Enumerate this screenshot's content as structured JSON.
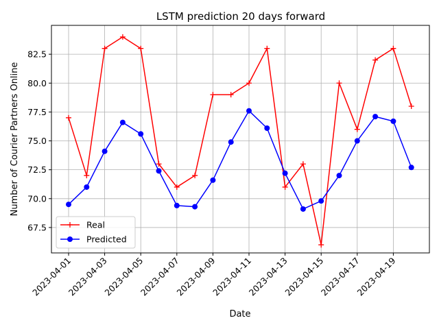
{
  "chart_data": {
    "type": "line",
    "title": "LSTM prediction 20 days forward",
    "xlabel": "Date",
    "ylabel": "Number of Courier Partners Online",
    "x": [
      "2023-04-01",
      "2023-04-02",
      "2023-04-03",
      "2023-04-04",
      "2023-04-05",
      "2023-04-06",
      "2023-04-07",
      "2023-04-08",
      "2023-04-09",
      "2023-04-10",
      "2023-04-11",
      "2023-04-12",
      "2023-04-13",
      "2023-04-14",
      "2023-04-15",
      "2023-04-16",
      "2023-04-17",
      "2023-04-18",
      "2023-04-19",
      "2023-04-20"
    ],
    "xticks": [
      "2023-04-01",
      "2023-04-03",
      "2023-04-05",
      "2023-04-07",
      "2023-04-09",
      "2023-04-11",
      "2023-04-13",
      "2023-04-15",
      "2023-04-17",
      "2023-04-19"
    ],
    "ylim": [
      65.3,
      85.0
    ],
    "yticks": [
      67.5,
      70.0,
      72.5,
      75.0,
      77.5,
      80.0,
      82.5
    ],
    "ytick_labels": [
      "67.5",
      "70.0",
      "72.5",
      "75.0",
      "77.5",
      "80.0",
      "82.5"
    ],
    "grid": true,
    "legend_position": "lower-left",
    "series": [
      {
        "name": "Real",
        "color": "#ff0000",
        "marker": "plus",
        "values": [
          77,
          72,
          83,
          84,
          83,
          73,
          71,
          72,
          79,
          79,
          80,
          83,
          71,
          73,
          66,
          80,
          76,
          82,
          83,
          78
        ]
      },
      {
        "name": "Predicted",
        "color": "#0000ff",
        "marker": "circle",
        "values": [
          69.5,
          71.0,
          74.1,
          76.6,
          75.6,
          72.4,
          69.4,
          69.3,
          71.6,
          74.9,
          77.6,
          76.1,
          72.2,
          69.1,
          69.8,
          72.0,
          75.0,
          77.1,
          76.7,
          72.7
        ]
      }
    ]
  }
}
